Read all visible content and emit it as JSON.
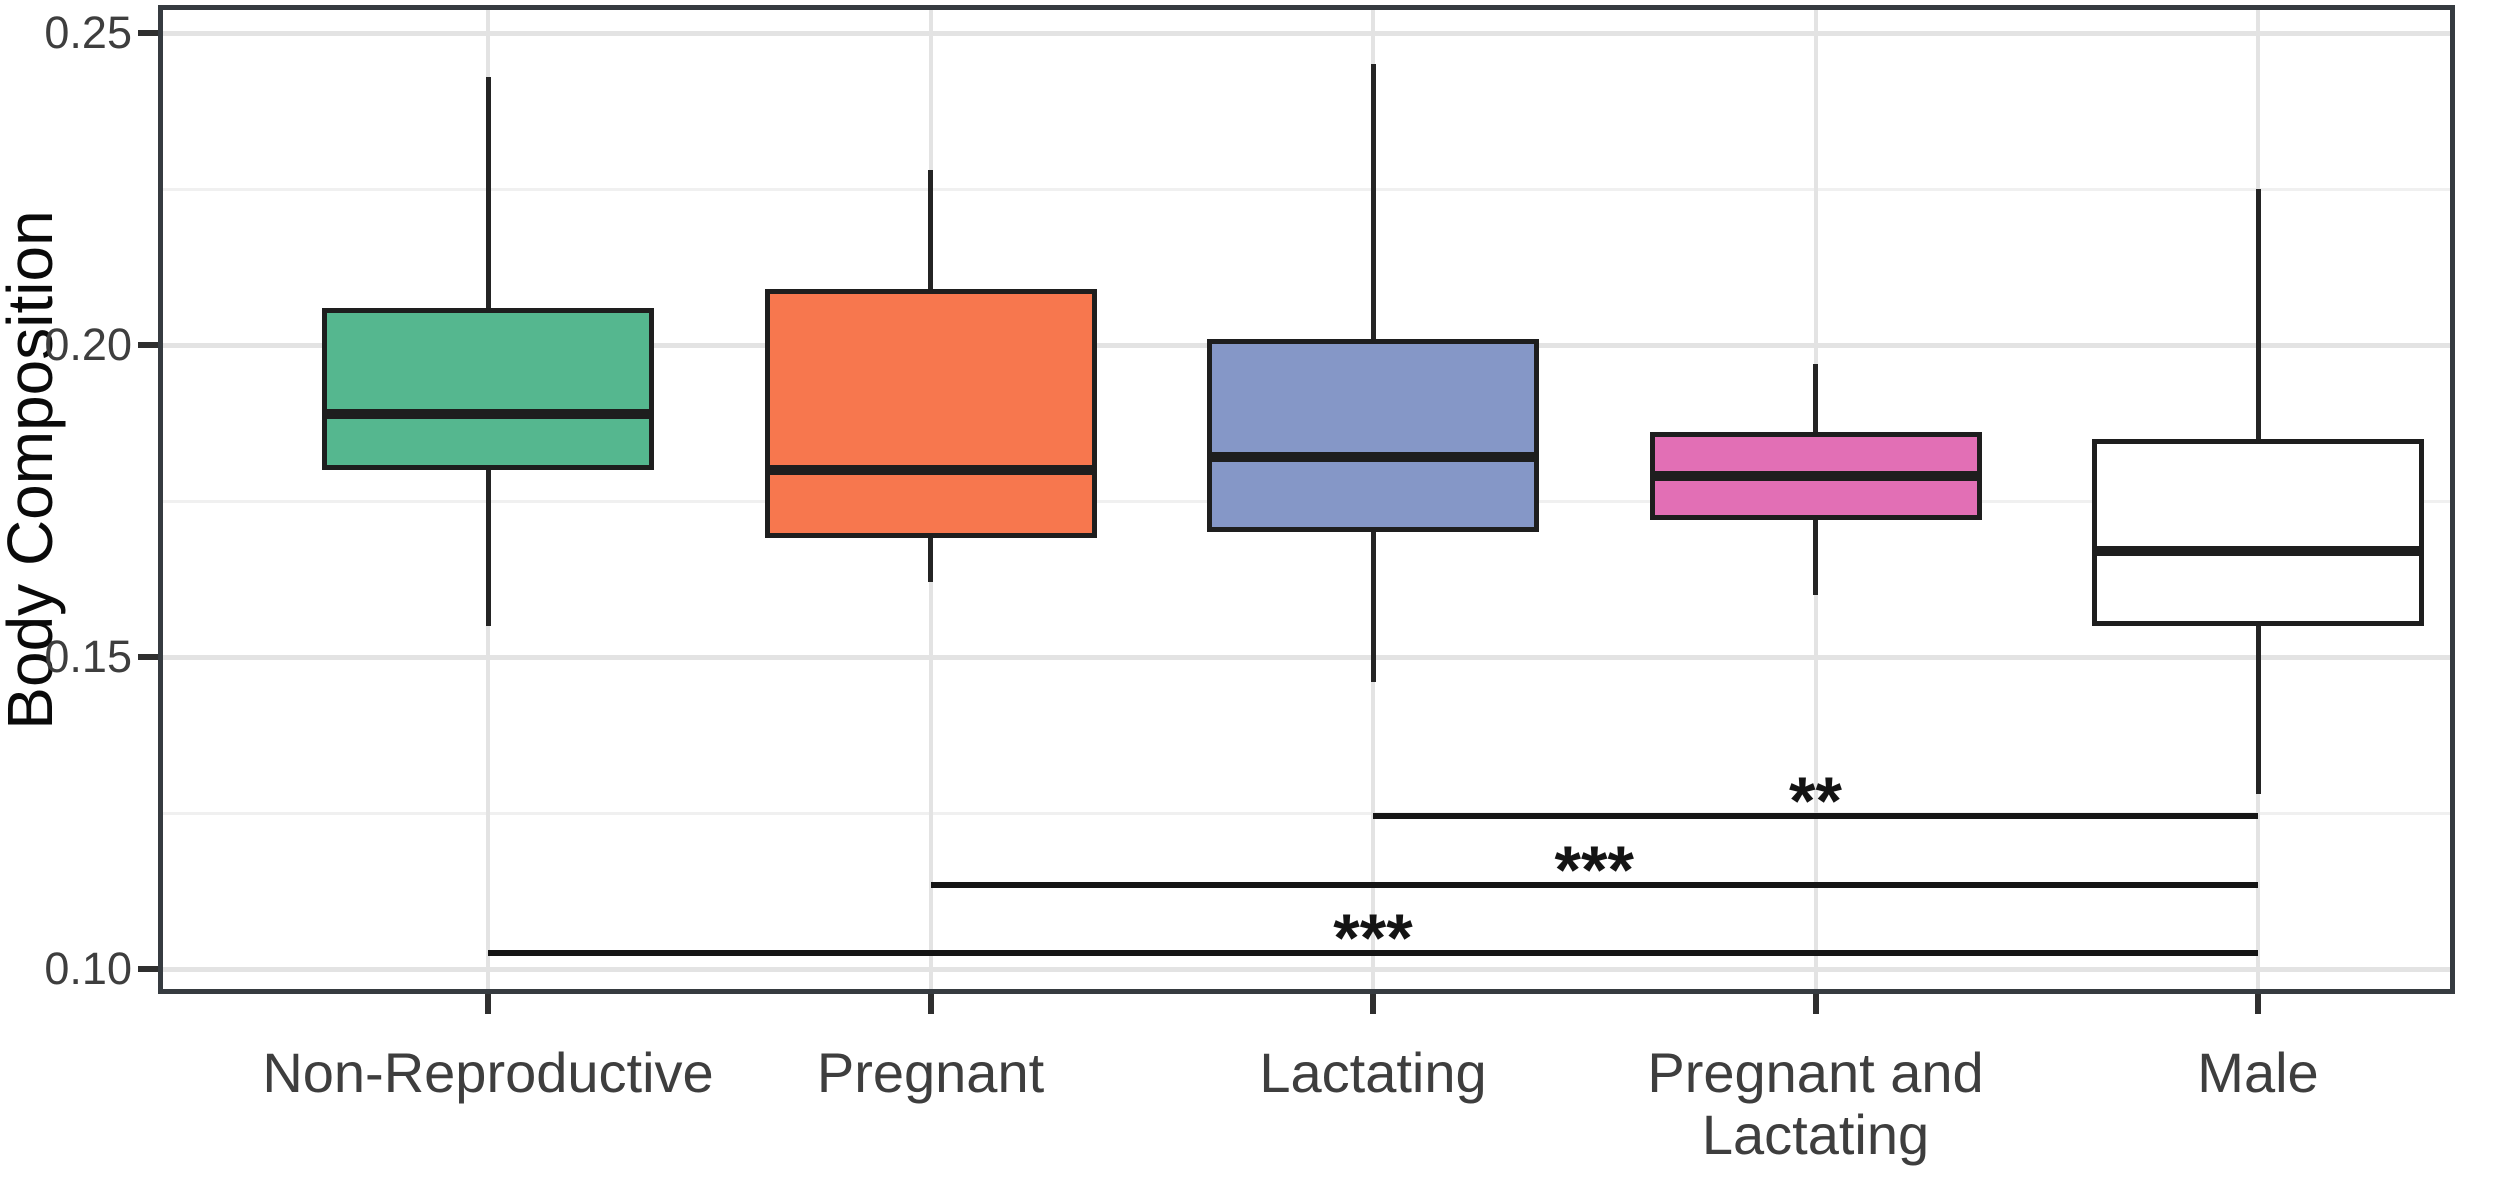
{
  "chart_data": {
    "type": "boxplot",
    "title": "",
    "xlabel": "",
    "ylabel": "Body Composition",
    "categories": [
      "Non-Reproductive",
      "Pregnant",
      "Lactating",
      "Pregnant and\nLactating",
      "Male"
    ],
    "boxes": [
      {
        "category": "Non-Reproductive",
        "fill": "#55B78F",
        "whisker_low": 0.155,
        "q1": 0.18,
        "median": 0.189,
        "q3": 0.206,
        "whisker_high": 0.243
      },
      {
        "category": "Pregnant",
        "fill": "#F7774E",
        "whisker_low": 0.162,
        "q1": 0.169,
        "median": 0.18,
        "q3": 0.209,
        "whisker_high": 0.228
      },
      {
        "category": "Lactating",
        "fill": "#8597C7",
        "whisker_low": 0.146,
        "q1": 0.17,
        "median": 0.182,
        "q3": 0.201,
        "whisker_high": 0.245
      },
      {
        "category": "Pregnant and\nLactating",
        "fill": "#E26FB5",
        "whisker_low": 0.16,
        "q1": 0.172,
        "median": 0.179,
        "q3": 0.186,
        "whisker_high": 0.197
      },
      {
        "category": "Male",
        "fill": "#FFFFFF",
        "whisker_low": 0.128,
        "q1": 0.155,
        "median": 0.167,
        "q3": 0.185,
        "whisker_high": 0.225
      }
    ],
    "y_axis": {
      "ticks": [
        "0.25",
        "0.20",
        "0.15",
        "0.10"
      ],
      "tick_values": [
        0.25,
        0.2,
        0.15,
        0.1
      ],
      "minor_values": [
        0.225,
        0.175,
        0.125
      ],
      "range_top": 0.2545,
      "range_bottom": 0.096,
      "grid": true
    },
    "significance_bars": [
      {
        "from_index": 2,
        "to_index": 4,
        "y": 0.1245,
        "label": "**"
      },
      {
        "from_index": 1,
        "to_index": 4,
        "y": 0.1135,
        "label": "***"
      },
      {
        "from_index": 0,
        "to_index": 4,
        "y": 0.1025,
        "label": "***"
      }
    ],
    "colors": {
      "box_border": "#1E1E1E",
      "median_line": "#1E1E1E",
      "whisker": "#242424",
      "panel_border": "#363B40",
      "panel_background": "#FFFFFF",
      "grid_major": "#E3E3E3",
      "grid_minor": "#F0F0F0",
      "tick_mark": "#2F2F2F",
      "tick_text": "#3E3E3E",
      "axis_title_text": "#0A0A0A",
      "significance_bar": "#151515"
    }
  }
}
